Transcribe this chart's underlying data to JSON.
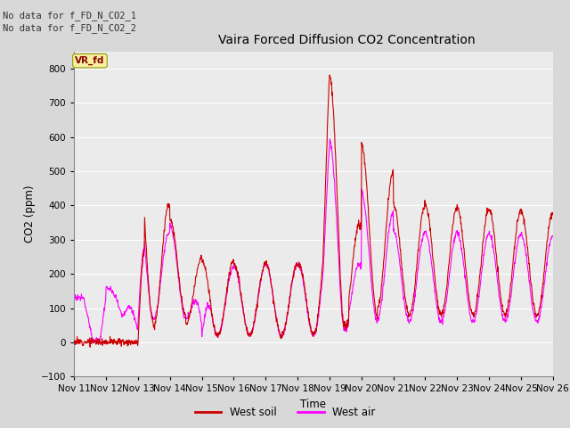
{
  "title": "Vaira Forced Diffusion CO2 Concentration",
  "ylabel": "CO2 (ppm)",
  "xlabel": "Time",
  "ylim": [
    -100,
    850
  ],
  "yticks": [
    -100,
    0,
    100,
    200,
    300,
    400,
    500,
    600,
    700,
    800
  ],
  "xtick_labels": [
    "Nov 11",
    "Nov 12",
    "Nov 13",
    "Nov 14",
    "Nov 15",
    "Nov 16",
    "Nov 17",
    "Nov 18",
    "Nov 19",
    "Nov 20",
    "Nov 21",
    "Nov 22",
    "Nov 23",
    "Nov 24",
    "Nov 25",
    "Nov 26"
  ],
  "no_data_text1": "No data for f_FD_N_CO2_1",
  "no_data_text2": "No data for f_FD_N_CO2_2",
  "vr_fd_label": "VR_fd",
  "soil_color": "#cc0000",
  "air_color": "#ff00ff",
  "legend_soil": "West soil",
  "legend_air": "West air",
  "bg_color": "#d8d8d8",
  "plot_bg_color": "#ebebeb",
  "grid_color": "#ffffff",
  "figsize": [
    6.4,
    4.8
  ],
  "dpi": 100
}
